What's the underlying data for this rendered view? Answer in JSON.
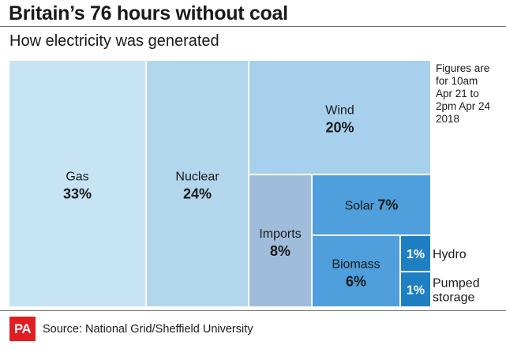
{
  "title": "Britain’s 76 hours without coal",
  "subtitle": "How electricity was generated",
  "note_lines": [
    "Figures are",
    "for 10am",
    "Apr 21 to",
    "2pm Apr 24",
    "2018"
  ],
  "source": "Source: National Grid/Sheffield University",
  "logo_text": "PA",
  "chart_data": {
    "type": "treemap",
    "title": "Britain’s 76 hours without coal",
    "subtitle": "How electricity was generated",
    "unit": "%",
    "items": [
      {
        "name": "Gas",
        "label": "33%",
        "value": 33,
        "color": "#c7e4f4",
        "text_color": "#1a1a1a"
      },
      {
        "name": "Nuclear",
        "label": "24%",
        "value": 24,
        "color": "#b2d6ec",
        "text_color": "#1a1a1a"
      },
      {
        "name": "Wind",
        "label": "20%",
        "value": 20,
        "color": "#a7d0ec",
        "text_color": "#1a1a1a"
      },
      {
        "name": "Imports",
        "label": "8%",
        "value": 8,
        "color": "#9fbcda",
        "text_color": "#1a1a1a"
      },
      {
        "name": "Solar",
        "label": "7%",
        "value": 7,
        "color": "#4e9fdb",
        "text_color": "#1a1a1a"
      },
      {
        "name": "Biomass",
        "label": "6%",
        "value": 6,
        "color": "#4e9fdb",
        "text_color": "#1a1a1a"
      },
      {
        "name": "Hydro",
        "label": "1%",
        "value": 1,
        "color": "#1f7fc3",
        "text_color": "#ffffff"
      },
      {
        "name": "Pumped storage",
        "label": "1%",
        "value": 1,
        "color": "#1f7fc3",
        "text_color": "#ffffff"
      }
    ]
  }
}
